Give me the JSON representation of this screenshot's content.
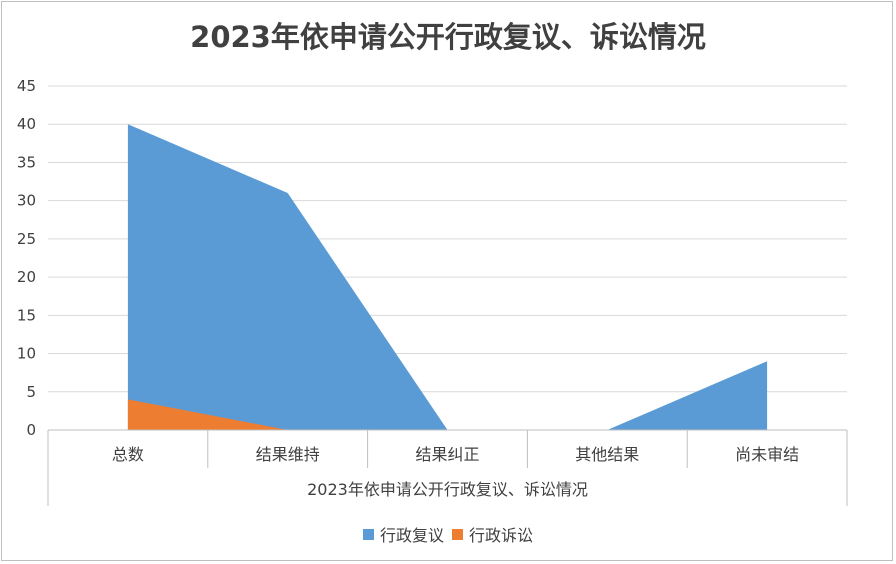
{
  "chart_data": {
    "type": "area",
    "title": "2023年依申请公开行政复议、诉讼情况",
    "categories": [
      "总数",
      "结果维持",
      "结果纠正",
      "其他结果",
      "尚未审结"
    ],
    "group_label": "2023年依申请公开行政复议、诉讼情况",
    "ylim": [
      0,
      45
    ],
    "yticks": [
      0,
      5,
      10,
      15,
      20,
      25,
      30,
      35,
      40,
      45
    ],
    "grid": true,
    "legend_position": "bottom",
    "series": [
      {
        "name": "行政复议",
        "values": [
          40,
          31,
          0,
          0,
          9
        ],
        "color": "#5b9bd5"
      },
      {
        "name": "行政诉讼",
        "values": [
          4,
          0,
          0,
          0,
          0
        ],
        "color": "#ed7d31"
      }
    ]
  }
}
